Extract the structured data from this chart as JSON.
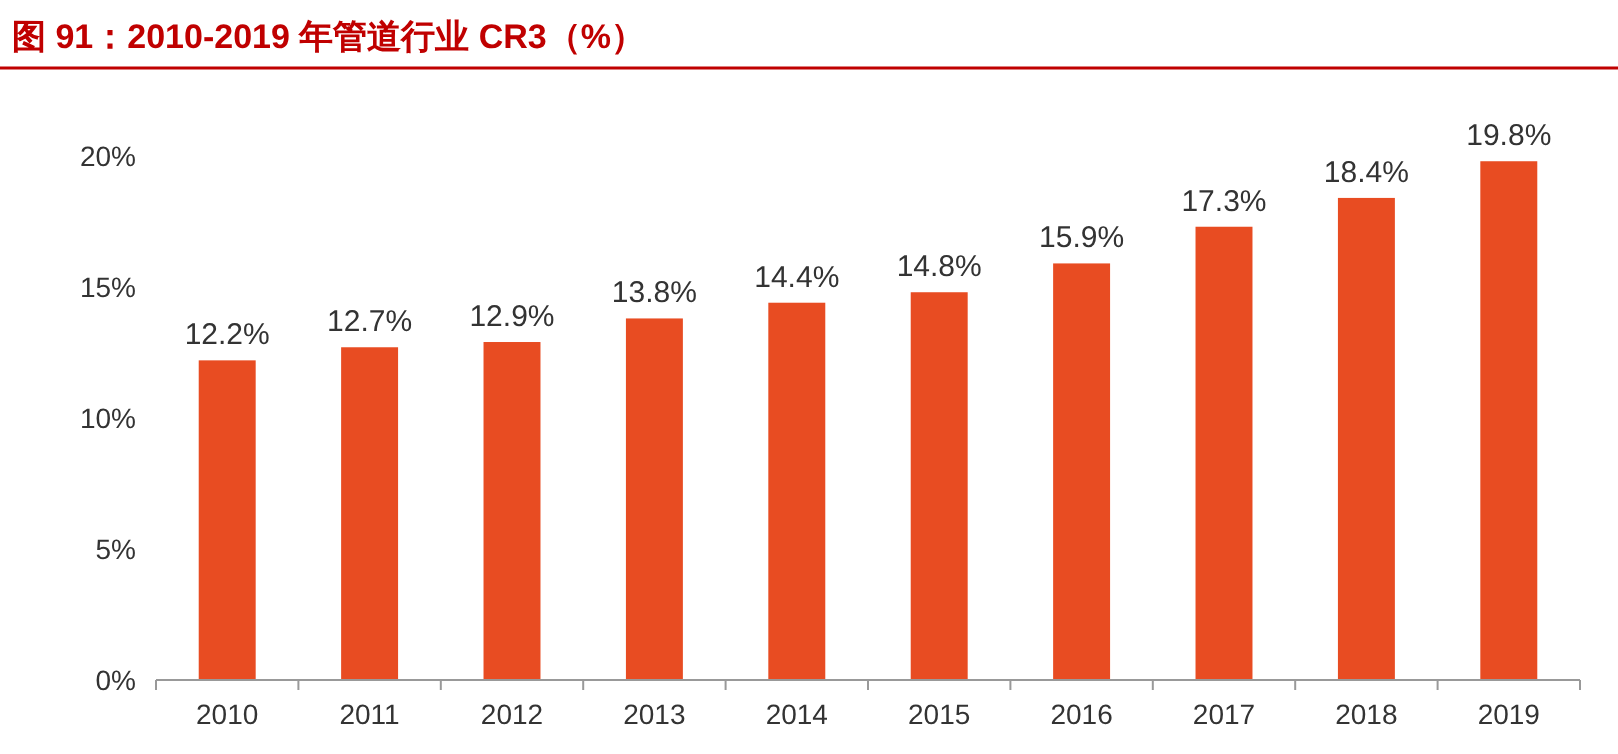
{
  "chart_data": {
    "type": "bar",
    "title": "图 91：2010-2019 年管道行业 CR3（%）",
    "categories": [
      "2010",
      "2011",
      "2012",
      "2013",
      "2014",
      "2015",
      "2016",
      "2017",
      "2018",
      "2019"
    ],
    "values": [
      12.2,
      12.7,
      12.9,
      13.8,
      14.4,
      14.8,
      15.9,
      17.3,
      18.4,
      19.8
    ],
    "value_labels": [
      "12.2%",
      "12.7%",
      "12.9%",
      "13.8%",
      "14.4%",
      "14.8%",
      "15.9%",
      "17.3%",
      "18.4%",
      "19.8%"
    ],
    "color": "#e84c22",
    "ylim": [
      0,
      20
    ],
    "yticks": [
      {
        "value": 0,
        "label": "0%"
      },
      {
        "value": 5,
        "label": "5%"
      },
      {
        "value": 10,
        "label": "10%"
      },
      {
        "value": 15,
        "label": "15%"
      },
      {
        "value": 20,
        "label": "20%"
      }
    ]
  }
}
